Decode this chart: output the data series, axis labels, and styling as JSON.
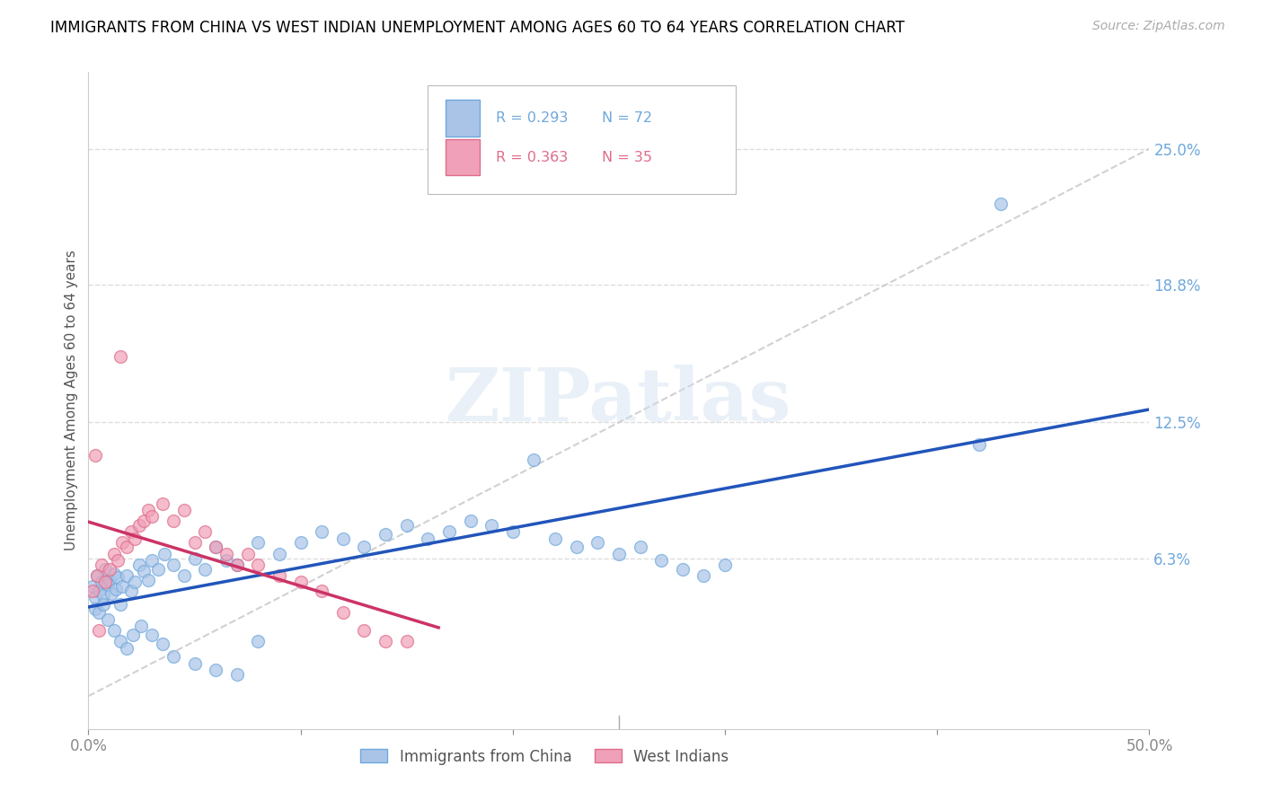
{
  "title": "IMMIGRANTS FROM CHINA VS WEST INDIAN UNEMPLOYMENT AMONG AGES 60 TO 64 YEARS CORRELATION CHART",
  "source": "Source: ZipAtlas.com",
  "ylabel": "Unemployment Among Ages 60 to 64 years",
  "right_ytick_labels": [
    "6.3%",
    "12.5%",
    "18.8%",
    "25.0%"
  ],
  "right_ytick_vals": [
    0.063,
    0.125,
    0.188,
    0.25
  ],
  "xlim": [
    0.0,
    0.5
  ],
  "ylim": [
    -0.015,
    0.285
  ],
  "watermark": "ZIPatlas",
  "legend_china": "Immigrants from China",
  "legend_west": "West Indians",
  "R_china": 0.293,
  "N_china": 72,
  "R_west": 0.363,
  "N_west": 35,
  "china_color": "#6fa8dc",
  "west_color": "#e06c8a",
  "china_color_light": "#aac4e8",
  "west_color_light": "#f0a0b8",
  "china_line_color": "#2255bb",
  "west_line_color": "#cc3366",
  "grid_color": "#dddddd",
  "diag_color": "#cccccc",
  "china_x": [
    0.002,
    0.003,
    0.004,
    0.005,
    0.006,
    0.007,
    0.008,
    0.009,
    0.01,
    0.011,
    0.012,
    0.013,
    0.014,
    0.015,
    0.016,
    0.018,
    0.02,
    0.022,
    0.024,
    0.026,
    0.028,
    0.03,
    0.033,
    0.036,
    0.04,
    0.045,
    0.05,
    0.055,
    0.06,
    0.065,
    0.07,
    0.08,
    0.09,
    0.1,
    0.11,
    0.12,
    0.13,
    0.14,
    0.15,
    0.16,
    0.17,
    0.18,
    0.19,
    0.2,
    0.21,
    0.22,
    0.23,
    0.24,
    0.25,
    0.26,
    0.27,
    0.28,
    0.29,
    0.3,
    0.003,
    0.005,
    0.007,
    0.009,
    0.012,
    0.015,
    0.018,
    0.021,
    0.025,
    0.03,
    0.035,
    0.04,
    0.05,
    0.06,
    0.07,
    0.08,
    0.42,
    0.43
  ],
  "china_y": [
    0.05,
    0.045,
    0.055,
    0.048,
    0.052,
    0.046,
    0.058,
    0.051,
    0.053,
    0.047,
    0.056,
    0.049,
    0.054,
    0.042,
    0.05,
    0.055,
    0.048,
    0.052,
    0.06,
    0.057,
    0.053,
    0.062,
    0.058,
    0.065,
    0.06,
    0.055,
    0.063,
    0.058,
    0.068,
    0.062,
    0.06,
    0.07,
    0.065,
    0.07,
    0.075,
    0.072,
    0.068,
    0.074,
    0.078,
    0.072,
    0.075,
    0.08,
    0.078,
    0.075,
    0.108,
    0.072,
    0.068,
    0.07,
    0.065,
    0.068,
    0.062,
    0.058,
    0.055,
    0.06,
    0.04,
    0.038,
    0.042,
    0.035,
    0.03,
    0.025,
    0.022,
    0.028,
    0.032,
    0.028,
    0.024,
    0.018,
    0.015,
    0.012,
    0.01,
    0.025,
    0.115,
    0.225
  ],
  "west_x": [
    0.002,
    0.004,
    0.006,
    0.008,
    0.01,
    0.012,
    0.014,
    0.016,
    0.018,
    0.02,
    0.022,
    0.024,
    0.026,
    0.028,
    0.03,
    0.035,
    0.04,
    0.045,
    0.05,
    0.055,
    0.06,
    0.065,
    0.07,
    0.075,
    0.08,
    0.09,
    0.1,
    0.11,
    0.12,
    0.13,
    0.14,
    0.15,
    0.003,
    0.005,
    0.015
  ],
  "west_y": [
    0.048,
    0.055,
    0.06,
    0.052,
    0.058,
    0.065,
    0.062,
    0.07,
    0.068,
    0.075,
    0.072,
    0.078,
    0.08,
    0.085,
    0.082,
    0.088,
    0.08,
    0.085,
    0.07,
    0.075,
    0.068,
    0.065,
    0.06,
    0.065,
    0.06,
    0.055,
    0.052,
    0.048,
    0.038,
    0.03,
    0.025,
    0.025,
    0.11,
    0.03,
    0.155
  ]
}
